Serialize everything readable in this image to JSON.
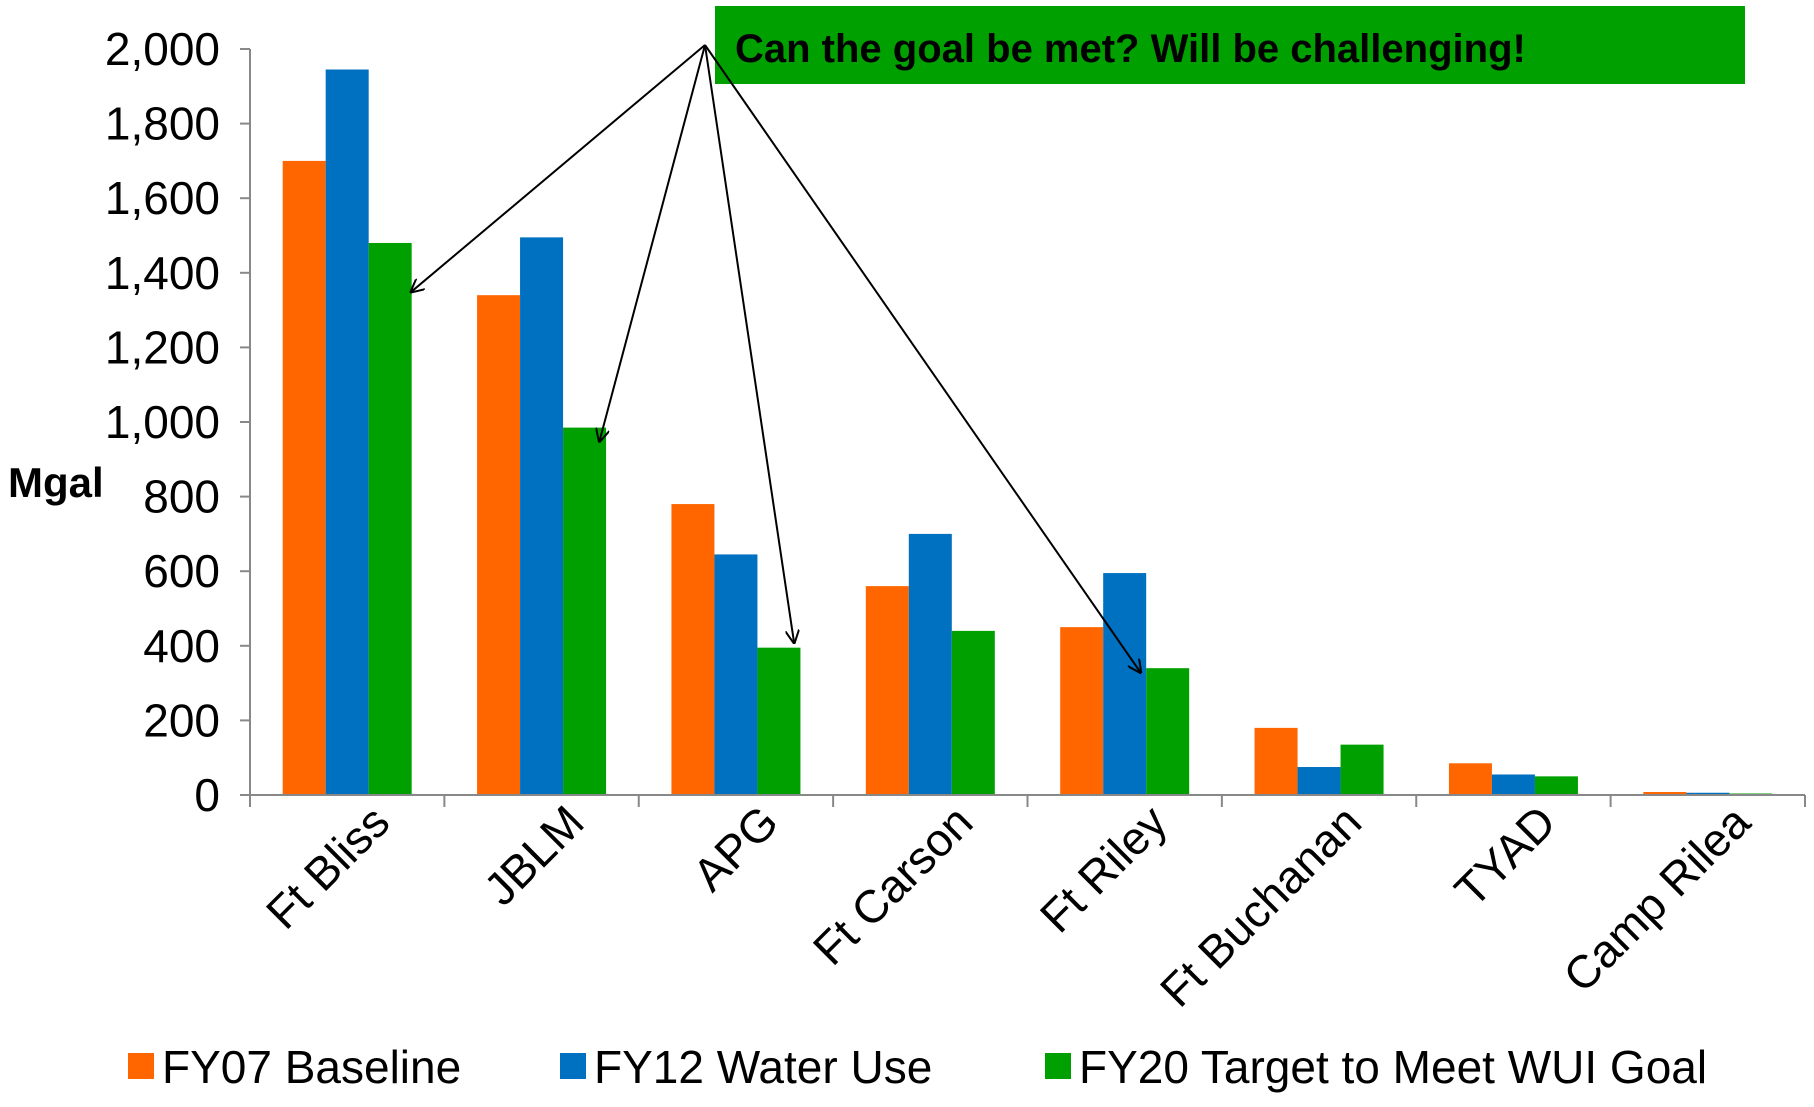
{
  "chart_data": {
    "type": "bar",
    "categories": [
      "Ft Bliss",
      "JBLM",
      "APG",
      "Ft Carson",
      "Ft Riley",
      "Ft Buchanan",
      "TYAD",
      "Camp Rilea"
    ],
    "series": [
      {
        "name": "FY07 Baseline",
        "color": "#FF6600",
        "values": [
          1700,
          1340,
          780,
          560,
          450,
          180,
          85,
          8
        ]
      },
      {
        "name": "FY12 Water Use",
        "color": "#0070C0",
        "values": [
          1945,
          1495,
          645,
          700,
          595,
          75,
          55,
          6
        ]
      },
      {
        "name": "FY20 Target to Meet WUI Goal",
        "color": "#00A000",
        "values": [
          1480,
          985,
          395,
          440,
          340,
          135,
          50,
          4
        ]
      }
    ],
    "ylabel": "Mgal",
    "xlabel": "",
    "ylim": [
      0,
      2000
    ],
    "yticks": [
      0,
      200,
      400,
      600,
      800,
      1000,
      1200,
      1400,
      1600,
      1800,
      2000
    ],
    "ytick_labels": [
      "0",
      "200",
      "400",
      "600",
      "800",
      "1,000",
      "1,200",
      "1,400",
      "1,600",
      "1,800",
      "2,000"
    ],
    "grid": false,
    "legend_position": "bottom",
    "annotation": {
      "text": "Can the goal be met?  Will be challenging!",
      "box_color": "#00A000",
      "arrow_targets": [
        {
          "category": "Ft Bliss",
          "value": 1350
        },
        {
          "category": "JBLM",
          "value": 950
        },
        {
          "category": "APG",
          "value": 410
        },
        {
          "category": "Ft Riley",
          "value": 330
        }
      ]
    }
  }
}
